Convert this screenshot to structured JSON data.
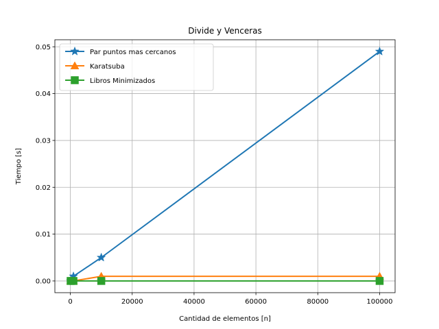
{
  "chart_data": {
    "type": "line",
    "title": "Divide y Venceras",
    "xlabel": "Cantidad de elementos [n]",
    "ylabel": "Tiempo [s]",
    "xlim": [
      -5000,
      105000
    ],
    "ylim": [
      -0.0025,
      0.0515
    ],
    "xticks": [
      0,
      20000,
      40000,
      60000,
      80000,
      100000
    ],
    "yticks": [
      0.0,
      0.01,
      0.02,
      0.03,
      0.04,
      0.05
    ],
    "xtick_labels": [
      "0",
      "20000",
      "40000",
      "60000",
      "80000",
      "100000"
    ],
    "ytick_labels": [
      "0.00",
      "0.01",
      "0.02",
      "0.03",
      "0.04",
      "0.05"
    ],
    "grid": true,
    "legend_position": "top-left",
    "x": [
      100,
      1000,
      10000,
      100000
    ],
    "series": [
      {
        "name": "Par puntos mas cercanos",
        "values": [
          0.0,
          0.001,
          0.005,
          0.049
        ],
        "color": "#1f77b4",
        "marker": "star"
      },
      {
        "name": "Karatsuba",
        "values": [
          0.0,
          0.0,
          0.001,
          0.001
        ],
        "color": "#ff7f0e",
        "marker": "triangle"
      },
      {
        "name": "Libros Minimizados",
        "values": [
          0.0,
          0.0,
          0.0,
          0.0
        ],
        "color": "#2ca02c",
        "marker": "square"
      }
    ]
  }
}
